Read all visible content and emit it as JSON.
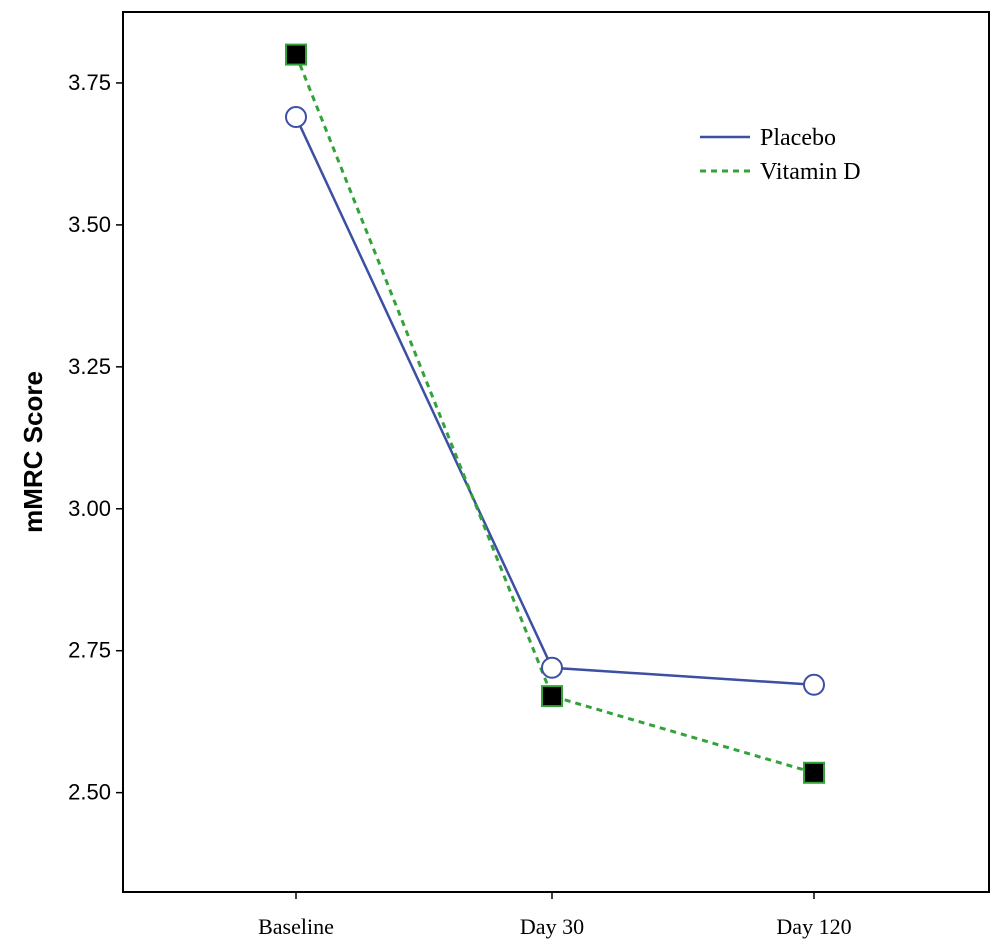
{
  "chart_data": {
    "type": "line",
    "title": "",
    "xlabel": "",
    "ylabel": "mMRC Score",
    "categories": [
      "Baseline",
      "Day 30",
      "Day 120"
    ],
    "ylim": [
      2.325,
      3.875
    ],
    "yticks": [
      2.5,
      2.75,
      3.0,
      3.25,
      3.5,
      3.75
    ],
    "ytick_labels": [
      "2.50",
      "2.75",
      "3.00",
      "3.25",
      "3.50",
      "3.75"
    ],
    "grid": false,
    "legend_position": "top-right",
    "series": [
      {
        "name": "Placebo",
        "values": [
          3.69,
          2.72,
          2.69
        ],
        "color": "#3b4fa3",
        "line_style": "solid",
        "marker": "open-circle"
      },
      {
        "name": "Vitamin D",
        "values": [
          3.8,
          2.67,
          2.535
        ],
        "color": "#33a23a",
        "line_style": "dotted",
        "marker": "filled-square"
      }
    ]
  }
}
